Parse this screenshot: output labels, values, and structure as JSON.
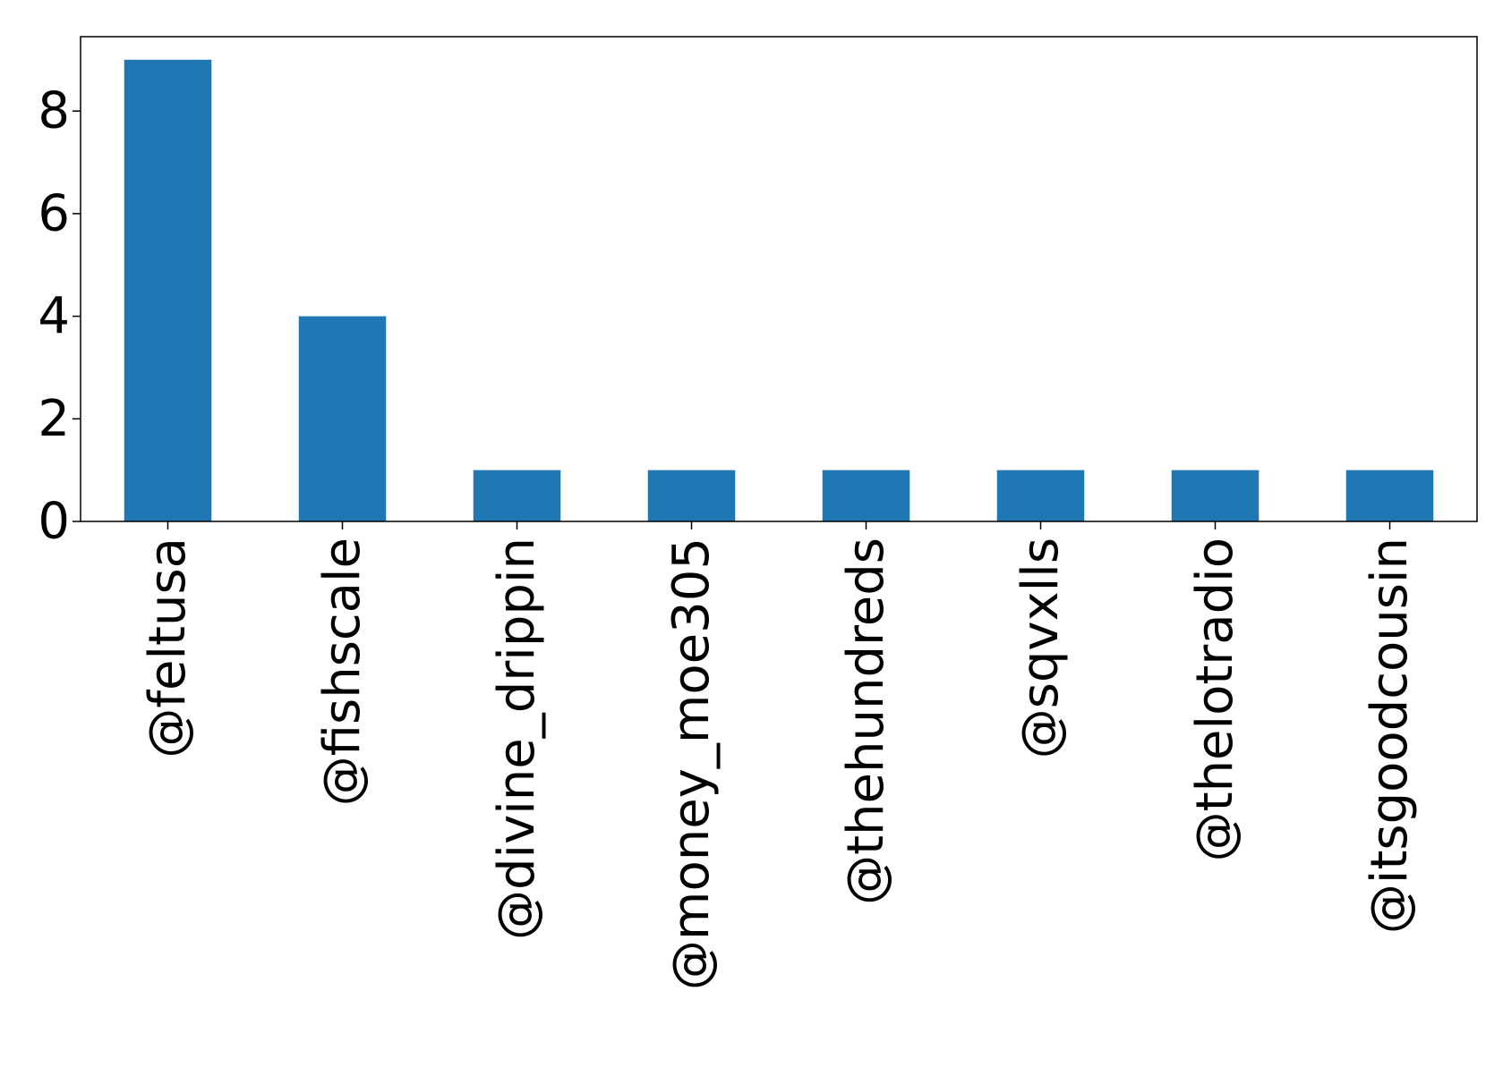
{
  "chart_data": {
    "type": "bar",
    "title": "",
    "xlabel": "",
    "ylabel": "",
    "categories": [
      "@feltusa",
      "@fishscale",
      "@divine_drippin",
      "@money_moe305",
      "@thehundreds",
      "@sqvxlls",
      "@thelotradio",
      "@itsgoodcousin"
    ],
    "values": [
      9,
      4,
      1,
      1,
      1,
      1,
      1,
      1
    ],
    "ylim": [
      0,
      9.45
    ],
    "yticks": [
      0,
      2,
      4,
      6,
      8
    ],
    "grid": false,
    "legend": "none",
    "bar_color": "#1f77b4",
    "axis_color": "#000000"
  }
}
